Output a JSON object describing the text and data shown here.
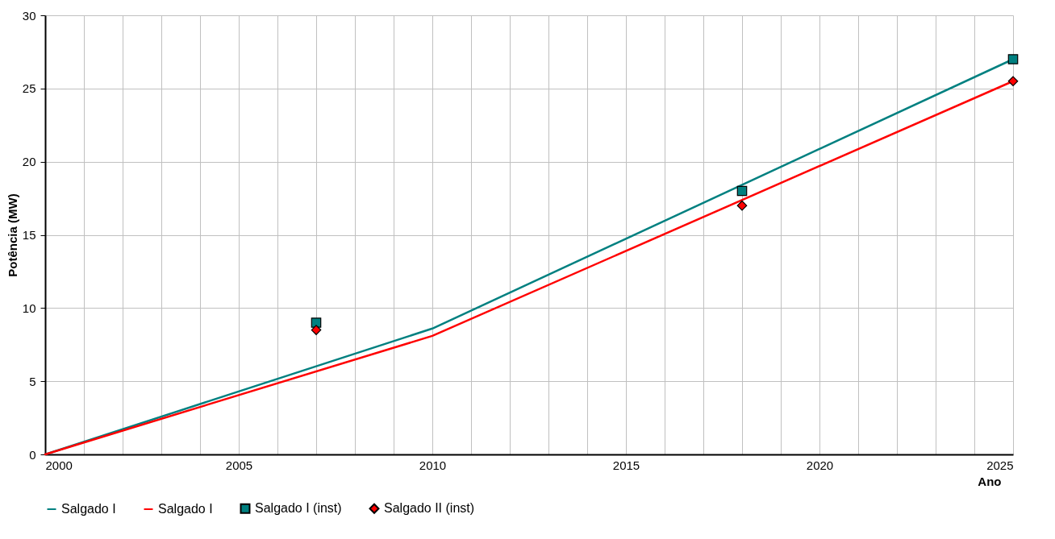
{
  "chart_data": {
    "type": "line",
    "xlabel": "Ano",
    "ylabel": "Potência (MW)",
    "xlim": [
      2000,
      2025
    ],
    "ylim": [
      0,
      30
    ],
    "xticks": [
      2000,
      {
        "value": 2001,
        "label": null
      },
      {
        "value": 2002,
        "label": null
      },
      {
        "value": 2003,
        "label": null
      },
      {
        "value": 2004,
        "label": null
      },
      2005,
      {
        "value": 2006,
        "label": null
      },
      {
        "value": 2007,
        "label": null
      },
      {
        "value": 2008,
        "label": null
      },
      {
        "value": 2009,
        "label": null
      },
      2010,
      {
        "value": 2011,
        "label": null
      },
      {
        "value": 2012,
        "label": null
      },
      {
        "value": 2013,
        "label": null
      },
      {
        "value": 2014,
        "label": null
      },
      2015,
      {
        "value": 2016,
        "label": null
      },
      {
        "value": 2017,
        "label": null
      },
      {
        "value": 2018,
        "label": null
      },
      {
        "value": 2019,
        "label": null
      },
      2020,
      {
        "value": 2021,
        "label": null
      },
      {
        "value": 2022,
        "label": null
      },
      {
        "value": 2023,
        "label": null
      },
      {
        "value": 2024,
        "label": null
      },
      2025
    ],
    "yticks": [
      0,
      5,
      10,
      15,
      20,
      25,
      30
    ],
    "grid": true,
    "legend": "bottom",
    "series": [
      {
        "name": "Salgado I",
        "color": "#008080",
        "x": [
          2000,
          2010,
          2025
        ],
        "values": [
          0,
          8.6,
          27
        ]
      },
      {
        "name": "Salgado I",
        "color": "#ff0000",
        "x": [
          2000,
          2010,
          2025
        ],
        "values": [
          0,
          8.1,
          25.5
        ]
      },
      {
        "name": "Salgado I (inst)",
        "type": "scatter",
        "marker": "square",
        "color": "#008080",
        "x": [
          2007,
          2018,
          2025
        ],
        "values": [
          9,
          18,
          27
        ]
      },
      {
        "name": "Salgado II (inst)",
        "type": "scatter",
        "marker": "diamond",
        "color": "#ff0000",
        "x": [
          2007,
          2018,
          2025
        ],
        "values": [
          8.5,
          17,
          25.5
        ]
      }
    ]
  }
}
